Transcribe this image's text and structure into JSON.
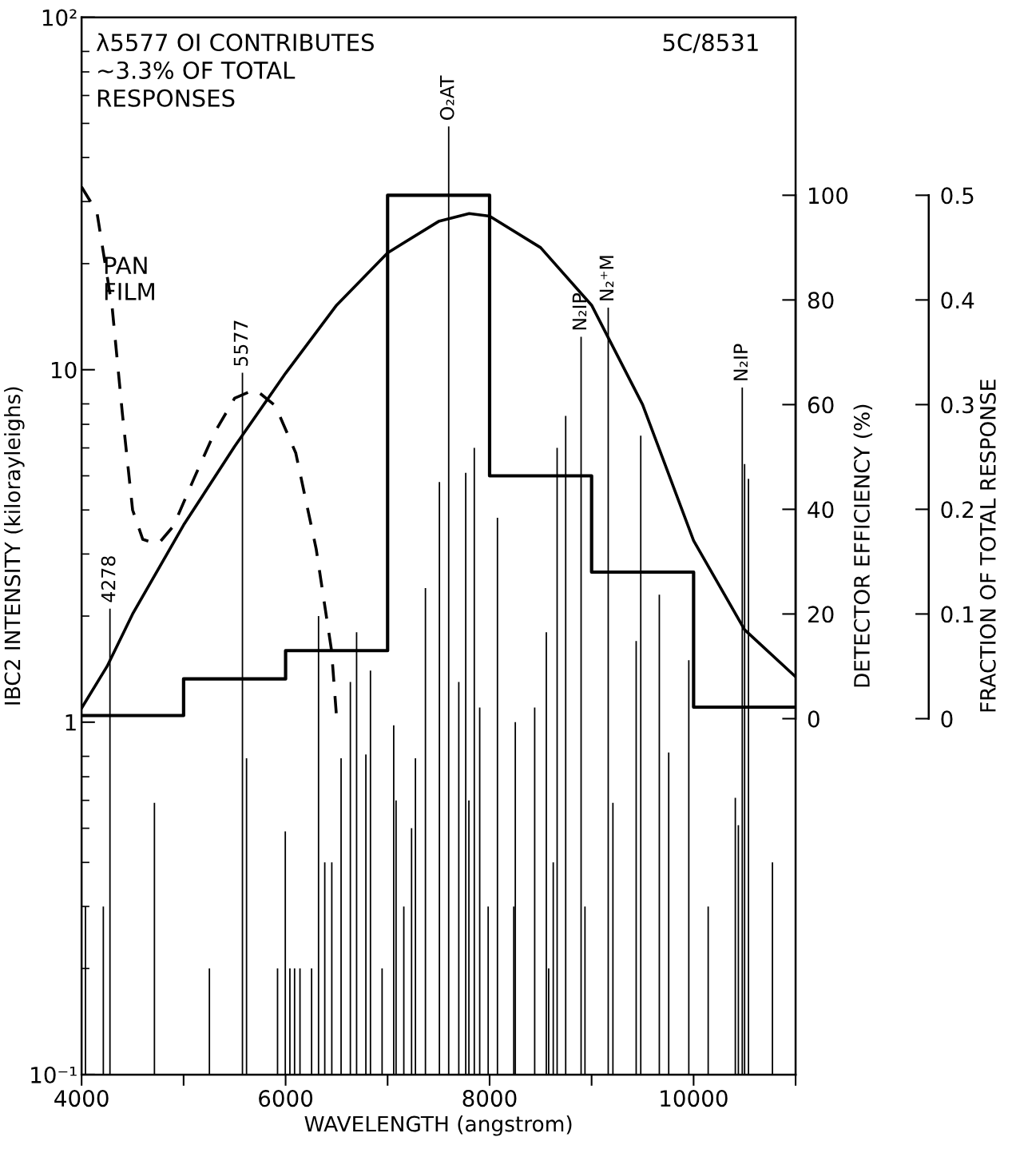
{
  "chart_data": {
    "type": "bar",
    "xlabel": "WAVELENGTH (angstrom)",
    "ylabel": "IBC2 INTENSITY (kilorayleighs)",
    "y2label": "DETECTOR EFFICIENCY (%)",
    "y3label": "FRACTION OF TOTAL RESPONSE",
    "log": "y",
    "xlim": [
      4000,
      11000
    ],
    "xticks": [
      4000,
      {
        "value": 5000,
        "label": null
      },
      6000,
      {
        "value": 7000,
        "label": null
      },
      8000,
      {
        "value": 9000,
        "label": null
      },
      10000,
      {
        "value": 11000,
        "label": null
      }
    ],
    "ylim": [
      0.1,
      100
    ],
    "yticks": [
      {
        "value": 0.1,
        "label": "10⁻¹"
      },
      1,
      10,
      {
        "value": 100,
        "label": "10²"
      }
    ],
    "y2lim": [
      -68,
      134
    ],
    "y2ticks": [
      0,
      20,
      40,
      60,
      80,
      100
    ],
    "y3lim": [
      -0.34,
      0.67
    ],
    "y3ticks": [
      0,
      0.1,
      0.2,
      0.3,
      0.4,
      0.5
    ],
    "grid": false,
    "legend": false,
    "series": [
      {
        "color": "#000000",
        "x": [
          4038,
          4213,
          4278,
          4714,
          5253,
          5577,
          5617,
          5921,
          5997,
          6042,
          6088,
          6141,
          6255,
          6323,
          6384,
          6453,
          6544,
          6635,
          6696,
          6787,
          6832,
          6946,
          7060,
          7083,
          7159,
          7235,
          7273,
          7371,
          7508,
          7599,
          7698,
          7766,
          7797,
          7850,
          7903,
          7986,
          8077,
          8237,
          8252,
          8442,
          8556,
          8579,
          8624,
          8662,
          8746,
          8897,
          8935,
          9163,
          9209,
          9437,
          9482,
          9664,
          9756,
          9953,
          10143,
          10409,
          10439,
          10477,
          10500,
          10538,
          10773
        ],
        "values": [
          0.3,
          0.3,
          2.1,
          0.59,
          0.2,
          9.8,
          0.79,
          0.2,
          0.49,
          0.2,
          0.2,
          0.2,
          0.2,
          2.0,
          0.4,
          0.4,
          0.79,
          1.3,
          1.8,
          0.81,
          1.4,
          0.2,
          0.98,
          0.6,
          0.3,
          0.5,
          0.79,
          2.4,
          4.8,
          49,
          1.3,
          5.1,
          0.6,
          6.0,
          1.1,
          0.3,
          3.8,
          0.3,
          1.0,
          1.1,
          1.8,
          0.2,
          0.4,
          6.0,
          7.4,
          12.4,
          0.3,
          15,
          0.59,
          1.7,
          6.5,
          2.3,
          0.82,
          1.5,
          0.3,
          0.61,
          0.51,
          8.9,
          5.4,
          4.9,
          0.4
        ]
      },
      {
        "type": "line",
        "name": "PAN\nFILM",
        "color": "#000000",
        "line_style": "dashed",
        "x": [
          4000,
          4150,
          4300,
          4400,
          4500,
          4600,
          4750,
          4900,
          5100,
          5300,
          5500,
          5700,
          5900,
          6100,
          6300,
          6450,
          6500
        ],
        "values": [
          33,
          28,
          15,
          7.5,
          4.0,
          3.3,
          3.2,
          3.6,
          4.9,
          6.6,
          8.3,
          8.8,
          7.9,
          5.8,
          3.1,
          1.6,
          1.03
        ]
      },
      {
        "type": "line",
        "axis": "y2",
        "color": "#000000",
        "line_style": "solid",
        "x": [
          4000,
          4250,
          4500,
          5000,
          5500,
          6000,
          6500,
          7000,
          7500,
          7800,
          8000,
          8500,
          9000,
          9500,
          10000,
          10500,
          11000
        ],
        "values": [
          2,
          10,
          20,
          37,
          52,
          66,
          79,
          89,
          95,
          96.5,
          96,
          90,
          79,
          60,
          34,
          17,
          8
        ]
      },
      {
        "type": "step",
        "axis": "y3",
        "color": "#000000",
        "x": [
          4000,
          5000,
          6000,
          7000,
          8000,
          9000,
          10000,
          11000
        ],
        "values": [
          0.003,
          0.038,
          0.065,
          0.5,
          0.232,
          0.14,
          0.011,
          0.011
        ]
      }
    ],
    "annotations": [
      "λ5577 OI CONTRIBUTES\n~3.3% OF TOTAL\nRESPONSES",
      "5C/8531",
      {
        "text": "4278",
        "x": 4278,
        "y": 2.1
      },
      {
        "text": "5577",
        "x": 5577,
        "y": 9.8
      },
      {
        "text": "O₂AT",
        "x": 7599,
        "y": 49
      },
      {
        "text": "N₂IP",
        "x": 8897,
        "y": 12.4
      },
      {
        "text": "N₂⁺M",
        "x": 9163,
        "y": 15
      },
      {
        "text": "N₂IP",
        "x": 10477,
        "y": 8.9
      }
    ]
  }
}
